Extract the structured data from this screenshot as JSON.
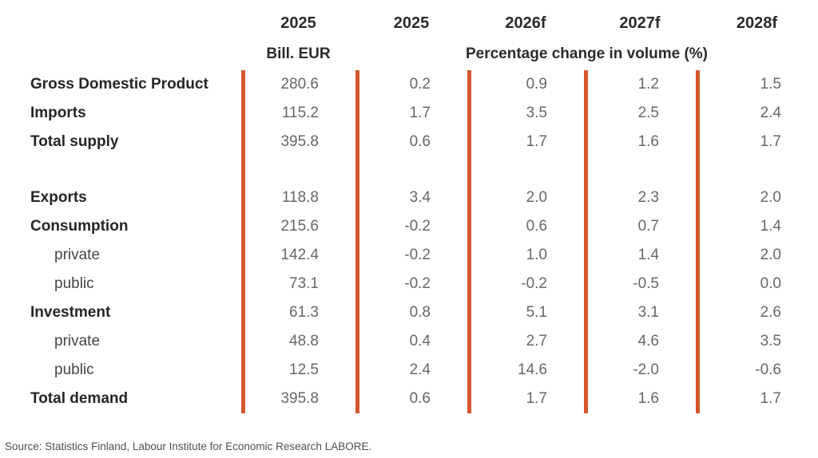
{
  "colors": {
    "accent_orange": "#d4572b"
  },
  "chart_data": {
    "type": "table",
    "unit_header": {
      "year": "2025",
      "unit": "Bill. EUR"
    },
    "pct_header": {
      "years": [
        "2025",
        "2026f",
        "2027f",
        "2028f"
      ],
      "label": "Percentage change in volume (%)"
    },
    "rows": [
      {
        "label": "Gross Domestic Product",
        "indent": false,
        "values": [
          "280.6",
          "0.2",
          "0.9",
          "1.2",
          "1.5"
        ]
      },
      {
        "label": "Imports",
        "indent": false,
        "values": [
          "115.2",
          "1.7",
          "3.5",
          "2.5",
          "2.4"
        ]
      },
      {
        "label": "Total supply",
        "indent": false,
        "values": [
          "395.8",
          "0.6",
          "1.7",
          "1.6",
          "1.7"
        ]
      },
      {
        "label": "Exports",
        "indent": false,
        "values": [
          "118.8",
          "3.4",
          "2.0",
          "2.3",
          "2.0"
        ]
      },
      {
        "label": "Consumption",
        "indent": false,
        "values": [
          "215.6",
          "-0.2",
          "0.6",
          "0.7",
          "1.4"
        ]
      },
      {
        "label": "private",
        "indent": true,
        "values": [
          "142.4",
          "-0.2",
          "1.0",
          "1.4",
          "2.0"
        ]
      },
      {
        "label": "public",
        "indent": true,
        "values": [
          "73.1",
          "-0.2",
          "-0.2",
          "-0.5",
          "0.0"
        ]
      },
      {
        "label": "Investment",
        "indent": false,
        "values": [
          "61.3",
          "0.8",
          "5.1",
          "3.1",
          "2.6"
        ]
      },
      {
        "label": "private",
        "indent": true,
        "values": [
          "48.8",
          "0.4",
          "2.7",
          "4.6",
          "3.5"
        ]
      },
      {
        "label": "public",
        "indent": true,
        "values": [
          "12.5",
          "2.4",
          "14.6",
          "-2.0",
          "-0.6"
        ]
      },
      {
        "label": "Total demand",
        "indent": false,
        "values": [
          "395.8",
          "0.6",
          "1.7",
          "1.6",
          "1.7"
        ]
      }
    ]
  },
  "footer": {
    "source": "Source: Statistics Finland, Labour Institute for Economic Research LABORE."
  }
}
